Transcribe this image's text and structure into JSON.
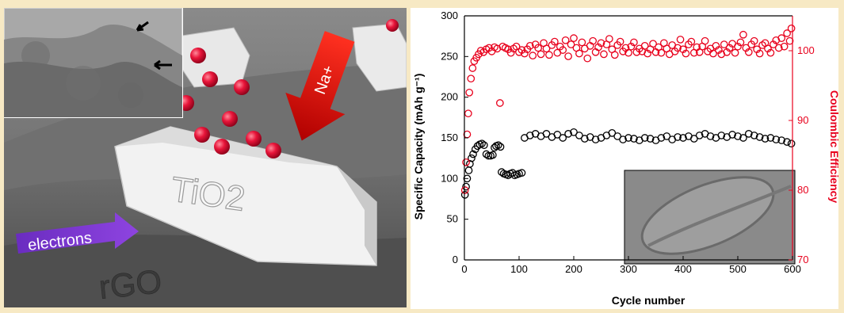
{
  "illustration": {
    "crystal_label": "TiO2",
    "ion_label": "Na+",
    "electron_label": "electrons",
    "substrate_label": "rGO"
  },
  "chart_data": {
    "type": "scatter",
    "xlabel": "Cycle number",
    "ylabel": "Specific Capacity (mAh g⁻¹)",
    "y2label": "Coulombic Efficiency",
    "xlim": [
      0,
      600
    ],
    "ylim": [
      0,
      300
    ],
    "y2lim": [
      70,
      105
    ],
    "xticks": [
      0,
      100,
      200,
      300,
      400,
      500,
      600
    ],
    "yticks": [
      0,
      50,
      100,
      150,
      200,
      250,
      300
    ],
    "y2ticks": [
      70,
      80,
      90,
      100
    ],
    "grid": false,
    "series": [
      {
        "axis": "left",
        "color": "#000000",
        "marker": "open-circle",
        "points": [
          [
            1,
            80
          ],
          [
            3,
            90
          ],
          [
            5,
            100
          ],
          [
            8,
            110
          ],
          [
            10,
            118
          ],
          [
            13,
            125
          ],
          [
            16,
            130
          ],
          [
            20,
            136
          ],
          [
            24,
            140
          ],
          [
            28,
            142
          ],
          [
            32,
            143
          ],
          [
            36,
            141
          ],
          [
            40,
            130
          ],
          [
            44,
            128
          ],
          [
            48,
            128
          ],
          [
            52,
            129
          ],
          [
            55,
            138
          ],
          [
            58,
            140
          ],
          [
            62,
            141
          ],
          [
            66,
            139
          ],
          [
            68,
            108
          ],
          [
            72,
            106
          ],
          [
            76,
            105
          ],
          [
            80,
            104
          ],
          [
            84,
            106
          ],
          [
            88,
            107
          ],
          [
            92,
            104
          ],
          [
            96,
            105
          ],
          [
            100,
            106
          ],
          [
            105,
            107
          ],
          [
            110,
            150
          ],
          [
            120,
            153
          ],
          [
            130,
            155
          ],
          [
            140,
            152
          ],
          [
            150,
            155
          ],
          [
            160,
            151
          ],
          [
            170,
            154
          ],
          [
            180,
            150
          ],
          [
            190,
            155
          ],
          [
            200,
            157
          ],
          [
            210,
            153
          ],
          [
            220,
            149
          ],
          [
            230,
            151
          ],
          [
            240,
            148
          ],
          [
            250,
            150
          ],
          [
            260,
            153
          ],
          [
            270,
            156
          ],
          [
            280,
            152
          ],
          [
            290,
            148
          ],
          [
            300,
            150
          ],
          [
            310,
            149
          ],
          [
            320,
            147
          ],
          [
            330,
            150
          ],
          [
            340,
            149
          ],
          [
            350,
            147
          ],
          [
            360,
            150
          ],
          [
            370,
            152
          ],
          [
            380,
            148
          ],
          [
            390,
            151
          ],
          [
            400,
            150
          ],
          [
            410,
            152
          ],
          [
            420,
            149
          ],
          [
            430,
            153
          ],
          [
            440,
            155
          ],
          [
            450,
            152
          ],
          [
            460,
            150
          ],
          [
            470,
            153
          ],
          [
            480,
            151
          ],
          [
            490,
            154
          ],
          [
            500,
            152
          ],
          [
            510,
            150
          ],
          [
            520,
            155
          ],
          [
            530,
            153
          ],
          [
            540,
            151
          ],
          [
            550,
            149
          ],
          [
            560,
            150
          ],
          [
            570,
            148
          ],
          [
            580,
            147
          ],
          [
            590,
            145
          ],
          [
            598,
            143
          ]
        ]
      },
      {
        "axis": "right",
        "color": "#e8001c",
        "marker": "open-circle",
        "points": [
          [
            1,
            80
          ],
          [
            3,
            84
          ],
          [
            5,
            88
          ],
          [
            7,
            91
          ],
          [
            9,
            94
          ],
          [
            12,
            96
          ],
          [
            15,
            97.5
          ],
          [
            18,
            98.5
          ],
          [
            22,
            99
          ],
          [
            26,
            99.5
          ],
          [
            30,
            100
          ],
          [
            35,
            99.8
          ],
          [
            40,
            100.2
          ],
          [
            45,
            100.4
          ],
          [
            50,
            99.9
          ],
          [
            55,
            100.5
          ],
          [
            60,
            100.3
          ],
          [
            65,
            92.5
          ],
          [
            70,
            100.6
          ],
          [
            75,
            100.4
          ],
          [
            80,
            100.2
          ],
          [
            85,
            99.7
          ],
          [
            90,
            100.3
          ],
          [
            95,
            100.6
          ],
          [
            100,
            99.8
          ],
          [
            105,
            100.1
          ],
          [
            110,
            99.6
          ],
          [
            115,
            100.2
          ],
          [
            120,
            100.7
          ],
          [
            125,
            99.3
          ],
          [
            130,
            100.9
          ],
          [
            135,
            100.4
          ],
          [
            140,
            99.5
          ],
          [
            145,
            101.1
          ],
          [
            150,
            100.3
          ],
          [
            155,
            99.4
          ],
          [
            160,
            100.8
          ],
          [
            165,
            101.3
          ],
          [
            170,
            99.7
          ],
          [
            175,
            100.6
          ],
          [
            180,
            100.1
          ],
          [
            185,
            101.5
          ],
          [
            190,
            99.2
          ],
          [
            195,
            100.9
          ],
          [
            200,
            101.8
          ],
          [
            205,
            100.4
          ],
          [
            210,
            99.6
          ],
          [
            215,
            101.2
          ],
          [
            220,
            100.3
          ],
          [
            225,
            98.9
          ],
          [
            230,
            100.7
          ],
          [
            235,
            101.4
          ],
          [
            240,
            99.8
          ],
          [
            245,
            100.5
          ],
          [
            250,
            101.1
          ],
          [
            255,
            99.5
          ],
          [
            260,
            100.9
          ],
          [
            265,
            101.7
          ],
          [
            270,
            100.2
          ],
          [
            275,
            99.4
          ],
          [
            280,
            100.8
          ],
          [
            285,
            101.3
          ],
          [
            290,
            99.9
          ],
          [
            295,
            100.4
          ],
          [
            300,
            99.7
          ],
          [
            305,
            100.6
          ],
          [
            310,
            101.2
          ],
          [
            315,
            99.8
          ],
          [
            320,
            100.3
          ],
          [
            325,
            99.9
          ],
          [
            330,
            100.7
          ],
          [
            335,
            99.6
          ],
          [
            340,
            100.2
          ],
          [
            345,
            101.0
          ],
          [
            350,
            99.8
          ],
          [
            355,
            100.5
          ],
          [
            360,
            99.7
          ],
          [
            365,
            101.1
          ],
          [
            370,
            100.3
          ],
          [
            375,
            99.5
          ],
          [
            380,
            100.8
          ],
          [
            385,
            99.9
          ],
          [
            390,
            100.4
          ],
          [
            395,
            101.6
          ],
          [
            400,
            100.2
          ],
          [
            405,
            99.6
          ],
          [
            410,
            100.9
          ],
          [
            415,
            101.3
          ],
          [
            420,
            99.7
          ],
          [
            425,
            100.5
          ],
          [
            430,
            99.8
          ],
          [
            435,
            100.6
          ],
          [
            440,
            101.4
          ],
          [
            445,
            99.9
          ],
          [
            450,
            100.3
          ],
          [
            455,
            99.6
          ],
          [
            460,
            100.7
          ],
          [
            465,
            100.1
          ],
          [
            470,
            99.5
          ],
          [
            475,
            100.9
          ],
          [
            480,
            99.8
          ],
          [
            485,
            100.4
          ],
          [
            490,
            101.0
          ],
          [
            495,
            99.7
          ],
          [
            500,
            100.6
          ],
          [
            505,
            101.2
          ],
          [
            510,
            102.3
          ],
          [
            515,
            100.4
          ],
          [
            520,
            99.8
          ],
          [
            525,
            100.9
          ],
          [
            530,
            101.4
          ],
          [
            535,
            100.2
          ],
          [
            540,
            99.6
          ],
          [
            545,
            100.8
          ],
          [
            550,
            101.1
          ],
          [
            555,
            100.3
          ],
          [
            560,
            99.7
          ],
          [
            565,
            100.9
          ],
          [
            570,
            101.5
          ],
          [
            575,
            100.4
          ],
          [
            580,
            101.8
          ],
          [
            585,
            100.6
          ],
          [
            590,
            102.5
          ],
          [
            595,
            101.4
          ],
          [
            598,
            103.2
          ]
        ]
      }
    ]
  }
}
